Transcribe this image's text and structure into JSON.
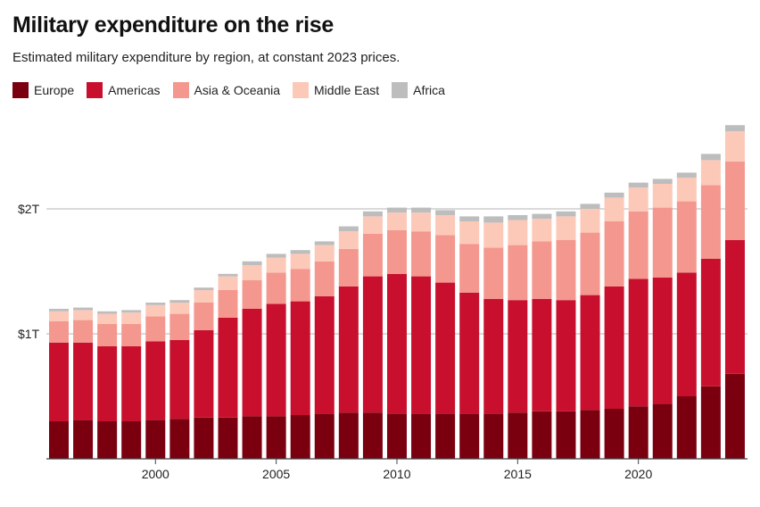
{
  "chart_data": {
    "type": "bar",
    "stacked": true,
    "title": "Military expenditure on the rise",
    "subtitle": "Estimated military expenditure by region, at constant 2023 prices.",
    "xlabel": "",
    "ylabel": "",
    "ylim": [
      0,
      2.68
    ],
    "y_ticks": [
      {
        "value": 1,
        "label": "$1T"
      },
      {
        "value": 2,
        "label": "$2T"
      }
    ],
    "x_ticks": [
      {
        "value": 2000,
        "label": "2000"
      },
      {
        "value": 2005,
        "label": "2005"
      },
      {
        "value": 2010,
        "label": "2010"
      },
      {
        "value": 2015,
        "label": "2015"
      },
      {
        "value": 2020,
        "label": "2020"
      }
    ],
    "legend_position": "top-left",
    "categories": [
      1996,
      1997,
      1998,
      1999,
      2000,
      2001,
      2002,
      2003,
      2004,
      2005,
      2006,
      2007,
      2008,
      2009,
      2010,
      2011,
      2012,
      2013,
      2014,
      2015,
      2016,
      2017,
      2018,
      2019,
      2020,
      2021,
      2022,
      2023,
      2024
    ],
    "series": [
      {
        "name": "Europe",
        "color": "#7a0010",
        "values": [
          0.3,
          0.31,
          0.3,
          0.3,
          0.31,
          0.32,
          0.33,
          0.33,
          0.34,
          0.34,
          0.35,
          0.36,
          0.37,
          0.37,
          0.36,
          0.36,
          0.36,
          0.36,
          0.36,
          0.37,
          0.38,
          0.38,
          0.39,
          0.4,
          0.42,
          0.44,
          0.5,
          0.58,
          0.68
        ]
      },
      {
        "name": "Americas",
        "color": "#c8102e",
        "values": [
          0.63,
          0.62,
          0.6,
          0.6,
          0.63,
          0.63,
          0.7,
          0.8,
          0.86,
          0.9,
          0.91,
          0.94,
          1.01,
          1.09,
          1.12,
          1.1,
          1.05,
          0.97,
          0.92,
          0.9,
          0.9,
          0.89,
          0.92,
          0.98,
          1.02,
          1.01,
          0.99,
          1.02,
          1.07
        ]
      },
      {
        "name": "Asia & Oceania",
        "color": "#f4978e",
        "values": [
          0.17,
          0.18,
          0.18,
          0.18,
          0.2,
          0.21,
          0.22,
          0.22,
          0.23,
          0.25,
          0.26,
          0.28,
          0.3,
          0.34,
          0.35,
          0.36,
          0.38,
          0.39,
          0.41,
          0.44,
          0.46,
          0.48,
          0.5,
          0.52,
          0.54,
          0.56,
          0.57,
          0.59,
          0.63
        ]
      },
      {
        "name": "Middle East",
        "color": "#fcc9b9",
        "values": [
          0.08,
          0.08,
          0.08,
          0.09,
          0.09,
          0.09,
          0.1,
          0.11,
          0.12,
          0.12,
          0.12,
          0.13,
          0.14,
          0.14,
          0.14,
          0.15,
          0.16,
          0.18,
          0.2,
          0.2,
          0.18,
          0.19,
          0.19,
          0.19,
          0.19,
          0.19,
          0.19,
          0.2,
          0.24
        ]
      },
      {
        "name": "Africa",
        "color": "#bdbdbd",
        "values": [
          0.02,
          0.02,
          0.02,
          0.02,
          0.02,
          0.02,
          0.02,
          0.02,
          0.03,
          0.03,
          0.03,
          0.03,
          0.04,
          0.04,
          0.04,
          0.04,
          0.04,
          0.04,
          0.05,
          0.04,
          0.04,
          0.04,
          0.04,
          0.04,
          0.04,
          0.04,
          0.04,
          0.05,
          0.05
        ]
      }
    ]
  }
}
